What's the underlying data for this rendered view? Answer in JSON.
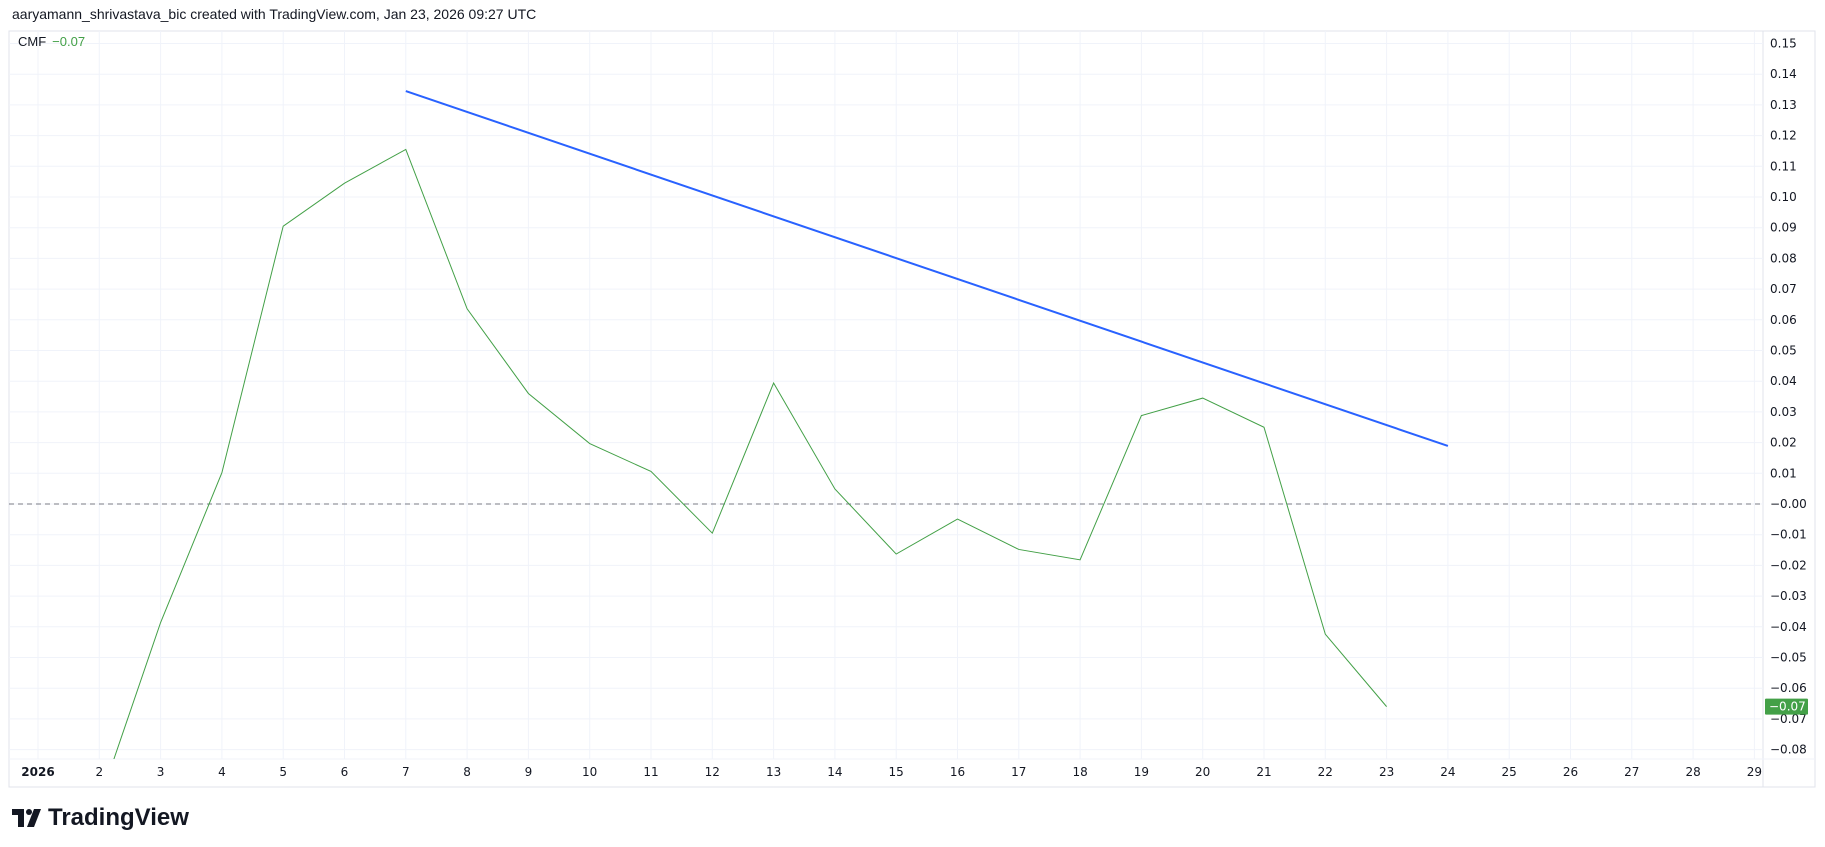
{
  "header": {
    "text": "aaryamann_shrivastava_bic created with TradingView.com, Jan 23, 2026 09:27 UTC"
  },
  "legend": {
    "name": "CMF",
    "value": "−0.07"
  },
  "brand": {
    "name": "TradingView",
    "icon": "tradingview-logo-icon"
  },
  "colors": {
    "cmf": "#43a047",
    "trendline": "#2962ff",
    "grid": "#f0f3fa",
    "zero_line": "#787b86",
    "last_value_bg": "#43a047"
  },
  "chart_data": {
    "type": "line",
    "x_tick_labels": [
      "2026",
      "2",
      "3",
      "4",
      "5",
      "6",
      "7",
      "8",
      "9",
      "10",
      "11",
      "12",
      "13",
      "14",
      "15",
      "16",
      "17",
      "18",
      "19",
      "20",
      "21",
      "22",
      "23",
      "24",
      "25",
      "26",
      "27",
      "28",
      "29"
    ],
    "y_tick_labels": [
      "0.15",
      "0.14",
      "0.13",
      "0.12",
      "0.11",
      "0.10",
      "0.09",
      "0.08",
      "0.07",
      "0.06",
      "0.05",
      "0.04",
      "0.03",
      "0.02",
      "0.01",
      "−0.00",
      "−0.01",
      "−0.02",
      "−0.03",
      "−0.04",
      "−0.05",
      "−0.06",
      "−0.07",
      "−0.08"
    ],
    "ylim": [
      -0.085,
      0.155
    ],
    "xlim_days": [
      1,
      29
    ],
    "grid": true,
    "zero_line": "dashed",
    "series": [
      {
        "name": "CMF",
        "x": [
          2,
          3,
          4,
          5,
          6,
          7,
          8,
          9,
          10,
          11,
          12,
          13,
          14,
          15,
          16,
          17,
          18,
          19,
          20,
          21,
          22,
          23
        ],
        "values": [
          -0.097,
          -0.0386,
          0.0102,
          0.0905,
          0.1045,
          0.1155,
          0.0636,
          0.036,
          0.0197,
          0.0106,
          -0.0095,
          0.0394,
          0.0049,
          -0.0163,
          -0.0049,
          -0.0148,
          -0.0182,
          0.0288,
          0.0345,
          0.025,
          -0.0424,
          -0.066
        ]
      }
    ],
    "trendline": {
      "x": [
        7,
        24
      ],
      "values": [
        0.1345,
        0.0189
      ]
    },
    "last_value_label": "−0.07"
  }
}
